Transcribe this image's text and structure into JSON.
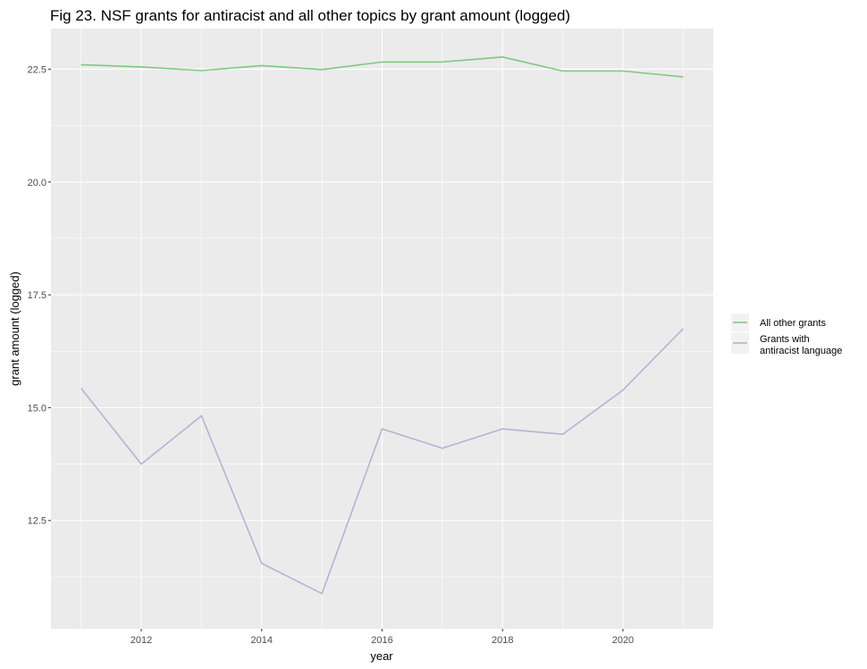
{
  "chart_data": {
    "type": "line",
    "title": "Fig 23. NSF grants for antiracist and all other topics by grant amount (logged)",
    "xlabel": "year",
    "ylabel": "grant amount (logged)",
    "x": [
      2011,
      2012,
      2013,
      2014,
      2015,
      2016,
      2017,
      2018,
      2019,
      2020,
      2021
    ],
    "xlim": [
      2010.5,
      2021.5
    ],
    "ylim": [
      10.1,
      23.4
    ],
    "x_ticks": [
      "2012",
      "2014",
      "2016",
      "2018",
      "2020"
    ],
    "y_ticks": [
      "12.5",
      "15.0",
      "17.5",
      "20.0",
      "22.5"
    ],
    "grid": true,
    "legend_position": "right",
    "series": [
      {
        "name": "All other grants",
        "color": "#7fc97f",
        "values": [
          22.6,
          22.55,
          22.47,
          22.58,
          22.49,
          22.66,
          22.66,
          22.77,
          22.46,
          22.46,
          22.33
        ]
      },
      {
        "name": "Grants with antiracist language",
        "label_lines": [
          "Grants with",
          "antiracist language"
        ],
        "color": "#beaed4",
        "values": [
          15.43,
          13.75,
          14.82,
          11.55,
          10.88,
          14.53,
          14.1,
          14.53,
          14.41,
          15.39,
          16.75
        ]
      }
    ]
  }
}
